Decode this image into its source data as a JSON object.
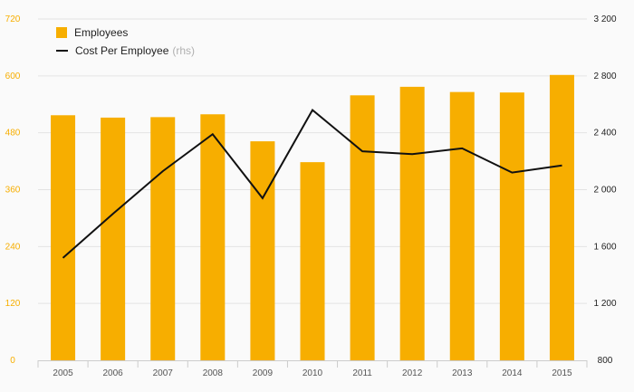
{
  "chart_data": {
    "type": "bar",
    "categories": [
      "2005",
      "2006",
      "2007",
      "2008",
      "2009",
      "2010",
      "2011",
      "2012",
      "2013",
      "2014",
      "2015"
    ],
    "series": [
      {
        "name": "Employees",
        "type": "bar",
        "axis": "left",
        "color": "#f7ae00",
        "values": [
          517,
          512,
          513,
          519,
          462,
          418,
          559,
          577,
          566,
          565,
          602
        ]
      },
      {
        "name": "Cost Per Employee",
        "type": "line",
        "axis": "right",
        "color": "#111111",
        "values": [
          1520,
          1830,
          2130,
          2390,
          1940,
          2560,
          2270,
          2250,
          2290,
          2120,
          2170
        ]
      }
    ],
    "yleft": {
      "ticks": [
        0,
        120,
        240,
        360,
        480,
        600,
        720
      ],
      "ylim": [
        0,
        720
      ]
    },
    "yright": {
      "ticks": [
        800,
        1200,
        1600,
        2000,
        2400,
        2800,
        3200
      ],
      "tick_labels": [
        "800",
        "1 200",
        "1 600",
        "2 000",
        "2 400",
        "2 800",
        "3 200"
      ],
      "ylim": [
        800,
        3200
      ]
    },
    "legend": {
      "position": "top-left",
      "items": [
        {
          "label": "Employees",
          "swatch": "bar"
        },
        {
          "label": "Cost Per Employee",
          "suffix": "(rhs)",
          "swatch": "line"
        }
      ]
    },
    "grid": true,
    "colors": {
      "left_tick": "#f7ae00",
      "right_tick": "#222222",
      "grid": "#e3e3e3",
      "background": "#fafafa"
    }
  }
}
